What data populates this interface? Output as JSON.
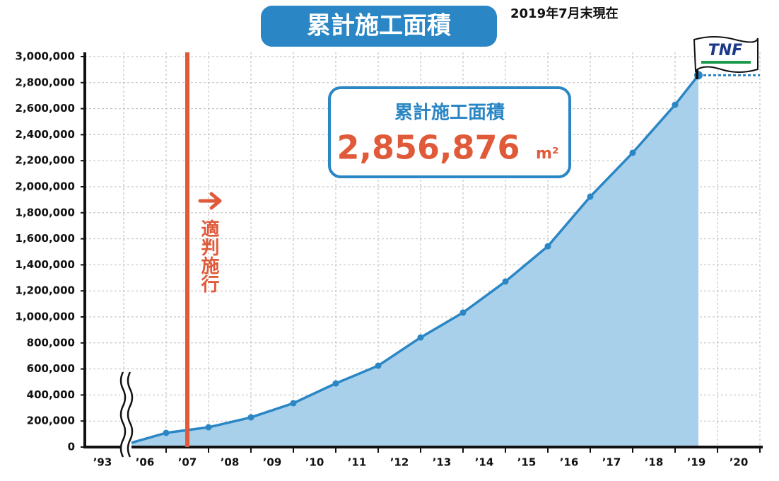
{
  "chart_data": {
    "type": "area-line",
    "title": "累計施工面積",
    "subtitle": "2019年7月末現在",
    "categories": [
      "’93",
      "’06",
      "’07",
      "’08",
      "’09",
      "’10",
      "’11",
      "’12",
      "’13",
      "’14",
      "’15",
      "’16",
      "’17",
      "’18",
      "’19",
      "’20"
    ],
    "series": [
      {
        "name": "累計施工面積",
        "color": "#2a86c4",
        "values": [
          16000,
          109000,
          152000,
          228000,
          337000,
          489000,
          625000,
          842000,
          1033000,
          1272000,
          1543000,
          1924000,
          2261000,
          2630000,
          2856876,
          null
        ]
      }
    ],
    "fill_color": "#a8d0ea",
    "ylim": [
      0,
      3000000
    ],
    "yticks": [
      0,
      {
        "value": 200000,
        "label": "200,000"
      },
      {
        "value": 400000,
        "label": "400,000"
      },
      {
        "value": 600000,
        "label": "600,000"
      },
      {
        "value": 800000,
        "label": "800,000"
      },
      {
        "value": 1000000,
        "label": "1,000,000"
      },
      {
        "value": 1200000,
        "label": "1,200,000"
      },
      {
        "value": 1400000,
        "label": "1,400,000"
      },
      {
        "value": 1600000,
        "label": "1,600,000"
      },
      {
        "value": 1800000,
        "label": "1,800,000"
      },
      {
        "value": 2000000,
        "label": "2,000,000"
      },
      {
        "value": 2200000,
        "label": "2,200,000"
      },
      {
        "value": 2400000,
        "label": "2,400,000"
      },
      {
        "value": 2600000,
        "label": "2,600,000"
      },
      {
        "value": 2800000,
        "label": "2,800,000"
      },
      {
        "value": 3000000,
        "label": "3,000,000"
      }
    ],
    "grid": true,
    "annotation": "適判施行",
    "annotation_category": 2,
    "total_box_title": "累計施工面積",
    "total_value_label": "2,856,876",
    "total_unit": "m²",
    "logo": "TNF"
  }
}
